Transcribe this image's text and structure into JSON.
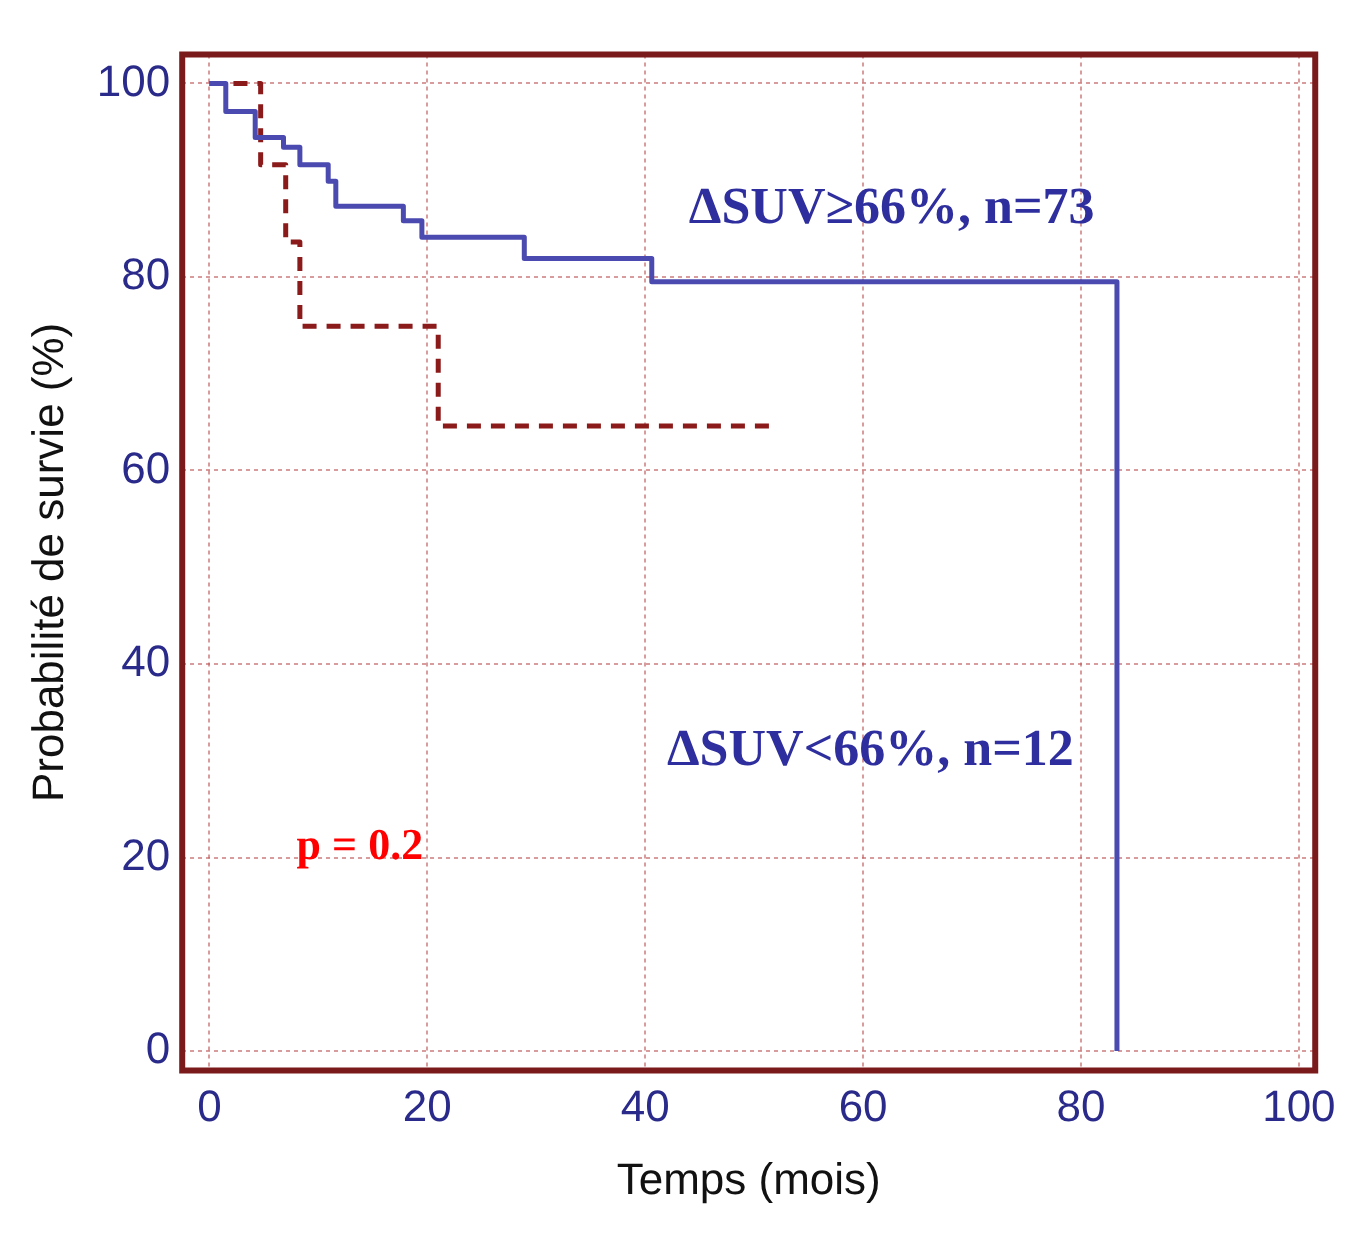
{
  "chart_data": {
    "type": "step",
    "xlabel": "Temps (mois)",
    "ylabel": "Probabilité de survie (%)",
    "xlim": [
      -2.5,
      101.5
    ],
    "ylim": [
      -2,
      103
    ],
    "xticks": [
      0,
      20,
      40,
      60,
      80,
      100
    ],
    "yticks": [
      0,
      20,
      40,
      60,
      80,
      100
    ],
    "grid": true,
    "legend": false,
    "series": [
      {
        "color": "#4a4ab0",
        "line_style": "solid",
        "x": [
          0,
          1.5,
          4.2,
          6.8,
          8.3,
          10.9,
          11.6,
          17.8,
          19.5,
          28.9,
          40.6,
          83.3
        ],
        "values": [
          100,
          97.1,
          94.4,
          93.4,
          91.6,
          89.9,
          87.3,
          85.8,
          84.1,
          81.9,
          79.5,
          0
        ]
      },
      {
        "color": "#8b1a1a",
        "line_style": "dashed",
        "x": [
          0,
          4.7,
          7.0,
          8.3,
          21.0,
          51.4
        ],
        "values": [
          100,
          91.6,
          83.6,
          74.9,
          64.6,
          64.6
        ]
      }
    ],
    "annotations": [
      "ΔSUV≥66%, n=73",
      "ΔSUV<66%, n=12",
      "p = 0.2"
    ]
  }
}
